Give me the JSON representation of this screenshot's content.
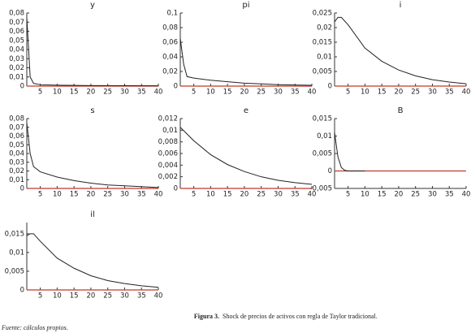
{
  "chart_data": [
    {
      "type": "line",
      "title": "y",
      "xlim": [
        1,
        40
      ],
      "xticks": [
        5,
        10,
        15,
        20,
        25,
        30,
        35,
        40
      ],
      "ylim": [
        0,
        0.08
      ],
      "yticks": [
        0,
        {
          "value": 0.01,
          "label": "0,01"
        },
        {
          "value": 0.02,
          "label": "0,02"
        },
        {
          "value": 0.03,
          "label": "0,03"
        },
        {
          "value": 0.04,
          "label": "0,04"
        },
        {
          "value": 0.05,
          "label": "0,05"
        },
        {
          "value": 0.06,
          "label": "0,06"
        },
        {
          "value": 0.07,
          "label": "0,07"
        },
        {
          "value": 0.08,
          "label": "0,08"
        }
      ],
      "ref_line": {
        "value": 0,
        "color": "#c0392b"
      },
      "x": [
        1,
        2,
        3,
        5,
        10,
        15,
        20,
        25,
        30,
        40
      ],
      "series": [
        {
          "color": "#222222",
          "values": [
            0.075,
            0.01,
            0.003,
            0.0015,
            0.001,
            0.0008,
            0.0006,
            0.0005,
            0.0004,
            0.0003
          ]
        }
      ]
    },
    {
      "type": "line",
      "title": "pi",
      "xlim": [
        1,
        40
      ],
      "xticks": [
        5,
        10,
        15,
        20,
        25,
        30,
        35,
        40
      ],
      "ylim": [
        0,
        0.1
      ],
      "yticks": [
        0,
        {
          "value": 0.02,
          "label": "0,02"
        },
        {
          "value": 0.04,
          "label": "0,04"
        },
        {
          "value": 0.06,
          "label": "0,06"
        },
        {
          "value": 0.08,
          "label": "0,08"
        },
        {
          "value": 0.1,
          "label": "0,1"
        }
      ],
      "ref_line": {
        "value": 0,
        "color": "#c0392b"
      },
      "x": [
        1,
        2,
        3,
        5,
        10,
        15,
        20,
        25,
        30,
        40
      ],
      "series": [
        {
          "color": "#222222",
          "values": [
            0.065,
            0.03,
            0.013,
            0.011,
            0.008,
            0.006,
            0.004,
            0.003,
            0.002,
            0.001
          ]
        }
      ]
    },
    {
      "type": "line",
      "title": "i",
      "xlim": [
        1,
        40
      ],
      "xticks": [
        5,
        10,
        15,
        20,
        25,
        30,
        35,
        40
      ],
      "ylim": [
        0,
        0.025
      ],
      "yticks": [
        0,
        {
          "value": 0.005,
          "label": "0,005"
        },
        {
          "value": 0.01,
          "label": "0,01"
        },
        {
          "value": 0.015,
          "label": "0,015"
        },
        {
          "value": 0.02,
          "label": "0,02"
        },
        {
          "value": 0.025,
          "label": "0,025"
        }
      ],
      "ref_line": {
        "value": 0,
        "color": "#c0392b"
      },
      "x": [
        1,
        2,
        3,
        5,
        10,
        15,
        20,
        25,
        30,
        35,
        40
      ],
      "series": [
        {
          "color": "#222222",
          "values": [
            0.022,
            0.0235,
            0.0235,
            0.021,
            0.013,
            0.0085,
            0.0055,
            0.0035,
            0.0022,
            0.0014,
            0.0008
          ]
        }
      ]
    },
    {
      "type": "line",
      "title": "s",
      "xlim": [
        1,
        40
      ],
      "xticks": [
        5,
        10,
        15,
        20,
        25,
        30,
        35,
        40
      ],
      "ylim": [
        0,
        0.08
      ],
      "yticks": [
        0,
        {
          "value": 0.01,
          "label": "0,01"
        },
        {
          "value": 0.02,
          "label": "0,02"
        },
        {
          "value": 0.03,
          "label": "0,03"
        },
        {
          "value": 0.04,
          "label": "0,04"
        },
        {
          "value": 0.05,
          "label": "0,05"
        },
        {
          "value": 0.06,
          "label": "0,06"
        },
        {
          "value": 0.07,
          "label": "0,07"
        },
        {
          "value": 0.08,
          "label": "0,08"
        }
      ],
      "ref_line": {
        "value": 0,
        "color": "#c0392b"
      },
      "x": [
        1,
        2,
        3,
        5,
        10,
        15,
        20,
        25,
        30,
        40
      ],
      "series": [
        {
          "color": "#222222",
          "values": [
            0.075,
            0.04,
            0.025,
            0.019,
            0.013,
            0.009,
            0.006,
            0.004,
            0.003,
            0.001
          ]
        }
      ]
    },
    {
      "type": "line",
      "title": "e",
      "xlim": [
        1,
        40
      ],
      "xticks": [
        5,
        10,
        15,
        20,
        25,
        30,
        35,
        40
      ],
      "ylim": [
        0,
        0.012
      ],
      "yticks": [
        0,
        {
          "value": 0.002,
          "label": "0,002"
        },
        {
          "value": 0.004,
          "label": "0,004"
        },
        {
          "value": 0.006,
          "label": "0,006"
        },
        {
          "value": 0.008,
          "label": "0,008"
        },
        {
          "value": 0.01,
          "label": "0,01"
        },
        {
          "value": 0.012,
          "label": "0,012"
        }
      ],
      "ref_line": {
        "value": 0,
        "color": "#c0392b"
      },
      "x": [
        1,
        5,
        10,
        15,
        20,
        25,
        30,
        35,
        40
      ],
      "series": [
        {
          "color": "#222222",
          "values": [
            0.0105,
            0.0082,
            0.0058,
            0.0041,
            0.0029,
            0.002,
            0.0014,
            0.001,
            0.0007
          ]
        }
      ]
    },
    {
      "type": "line",
      "title": "B",
      "xlim": [
        1,
        40
      ],
      "xticks": [
        5,
        10,
        15,
        20,
        25,
        30,
        35,
        40
      ],
      "ylim": [
        -0.005,
        0.015
      ],
      "yticks": [
        {
          "value": -0.005,
          "label": "-0,005"
        },
        0,
        {
          "value": 0.005,
          "label": "0,005"
        },
        {
          "value": 0.01,
          "label": "0,01"
        },
        {
          "value": 0.015,
          "label": "0,015"
        }
      ],
      "ref_line": {
        "value": 0,
        "color": "#c0392b"
      },
      "x": [
        1,
        2,
        3,
        4,
        5,
        10
      ],
      "series": [
        {
          "color": "#222222",
          "values": [
            0.011,
            0.004,
            0.001,
            0.0002,
            0,
            0
          ]
        }
      ]
    },
    {
      "type": "line",
      "title": "il",
      "xlim": [
        1,
        40
      ],
      "xticks": [
        5,
        10,
        15,
        20,
        25,
        30,
        35,
        40
      ],
      "ylim": [
        0,
        0.018
      ],
      "yticks": [
        0,
        {
          "value": 0.005,
          "label": "0,005"
        },
        {
          "value": 0.01,
          "label": "0,01"
        },
        {
          "value": 0.015,
          "label": "0,015"
        }
      ],
      "ref_line": {
        "value": 0,
        "color": "#c0392b"
      },
      "x": [
        1,
        2,
        3,
        5,
        10,
        15,
        20,
        25,
        30,
        35,
        40
      ],
      "series": [
        {
          "color": "#222222",
          "values": [
            0.0145,
            0.015,
            0.015,
            0.013,
            0.0085,
            0.0058,
            0.0038,
            0.0025,
            0.0017,
            0.0011,
            0.0007
          ]
        }
      ]
    }
  ],
  "caption": {
    "label": "Figura 3.",
    "text": "Shock de precios de activos con regla de Taylor tradicional."
  },
  "source": "Fuente: cálculos propios."
}
